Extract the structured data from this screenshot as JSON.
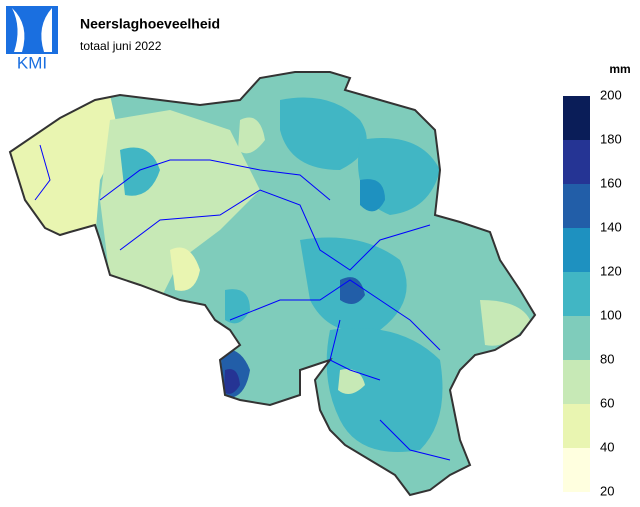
{
  "header": {
    "logo": "KMI",
    "title": "Neerslaghoeveelheid",
    "subtitle": "totaal juni 2022"
  },
  "legend": {
    "unit": "mm",
    "ticks": [
      20,
      40,
      60,
      80,
      100,
      120,
      140,
      160,
      180,
      200
    ],
    "colors": [
      "#ffffdf",
      "#e9f5b1",
      "#c7e9b6",
      "#7fccbb",
      "#41b6c4",
      "#1e91c0",
      "#225ea8",
      "#253494",
      "#0a1d58"
    ]
  }
}
